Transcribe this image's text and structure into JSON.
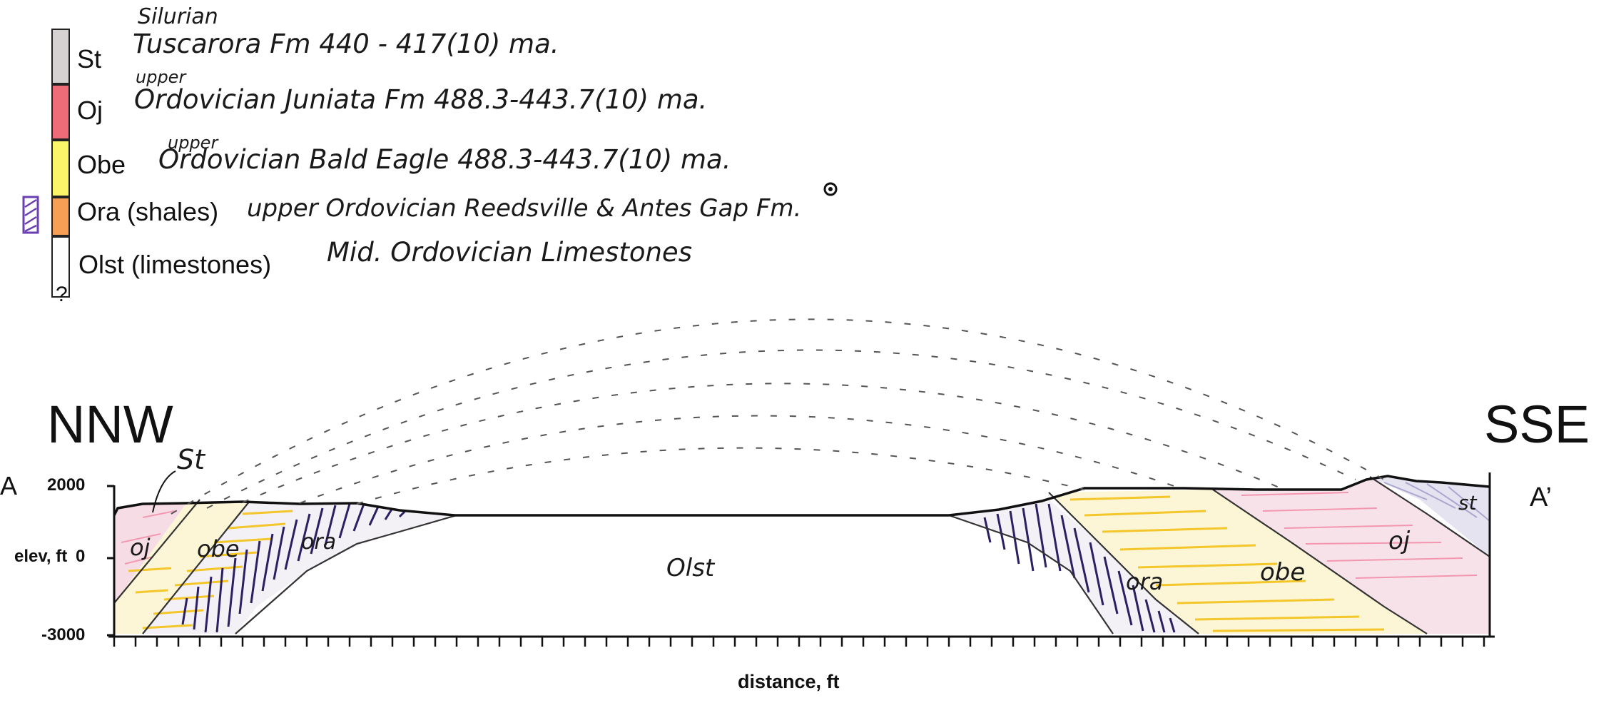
{
  "legend": {
    "units": [
      {
        "symbol": "St",
        "color": "#d6d2d2",
        "pre_note": "Silurian",
        "note": "Tuscarora Fm 440 - 417(10) ma."
      },
      {
        "symbol": "Oj",
        "color": "#ee6b78",
        "pre_note": "upper",
        "note": "Ordovician Juniata Fm 488.3-443.7(10) ma."
      },
      {
        "symbol": "Obe",
        "color": "#fbf56a",
        "pre_note": "upper",
        "note": "Ordovician Bald Eagle 488.3-443.7(10) ma."
      },
      {
        "symbol": "Ora (shales)",
        "color": "#f7a055",
        "pre_note": "",
        "note": "upper Ordovician Reedsville & Antes Gap Fm."
      },
      {
        "symbol": "Olst (limestones)",
        "color": "#ffffff",
        "pre_note": "",
        "note": "Mid. Ordovician Limestones"
      }
    ],
    "question_mark": "?"
  },
  "section": {
    "left_label": "NNW",
    "right_label": "SSE",
    "left_point": "A",
    "right_point": "A’",
    "ylabel": "elev, ft",
    "yticks": [
      "2000",
      "0",
      "-3000"
    ],
    "xlabel": "distance, ft",
    "unit_labels": {
      "st_left": "St",
      "oj_left": "oj",
      "obe_left": "obe",
      "ora_left": "ora",
      "olst": "Olst",
      "ora_right": "ora",
      "obe_right": "obe",
      "oj_right": "oj",
      "st_right": "st"
    }
  },
  "colors": {
    "st": "#b9b3cf",
    "oj": "#f08aa0",
    "obe": "#f6cc2a",
    "ora": "#2b2061",
    "line": "#222222"
  }
}
